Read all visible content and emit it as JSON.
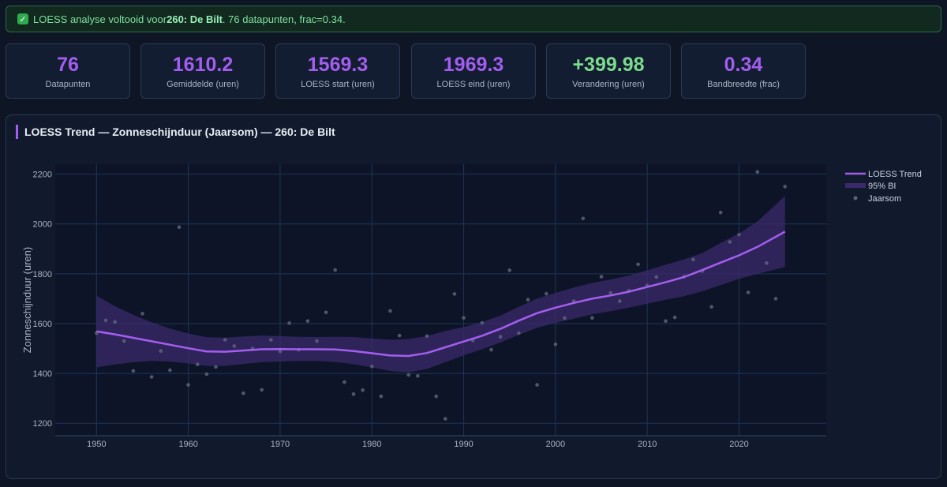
{
  "banner": {
    "icon": "check-icon",
    "prefix": "LOESS analyse voltooid voor ",
    "station": "260: De Bilt",
    "suffix": ". 76 datapunten, frac=0.34."
  },
  "cards": [
    {
      "value": "76",
      "label": "Datapunten",
      "positive": false
    },
    {
      "value": "1610.2",
      "label": "Gemiddelde (uren)",
      "positive": false
    },
    {
      "value": "1569.3",
      "label": "LOESS start (uren)",
      "positive": false
    },
    {
      "value": "1969.3",
      "label": "LOESS eind (uren)",
      "positive": false
    },
    {
      "value": "+399.98",
      "label": "Verandering (uren)",
      "positive": true
    },
    {
      "value": "0.34",
      "label": "Bandbreedte (frac)",
      "positive": false
    }
  ],
  "panel": {
    "title": "LOESS Trend — Zonneschijnduur (Jaarsom) — 260: De Bilt"
  },
  "chart_data": {
    "type": "line",
    "title": "LOESS Trend — Zonneschijnduur (Jaarsom) — 260: De Bilt",
    "xlabel": "",
    "ylabel": "Zonneschijnduur (uren)",
    "xlim": [
      1945.5,
      2029.5
    ],
    "ylim": [
      1150,
      2240
    ],
    "xticks": [
      1950,
      1960,
      1970,
      1980,
      1990,
      2000,
      2010,
      2020
    ],
    "yticks": [
      1200,
      1400,
      1600,
      1800,
      2000,
      2200
    ],
    "grid": true,
    "legend_position": "top-right",
    "colors": {
      "trend": "#a35ef0",
      "band": "#3b2a6b",
      "points": "#5a6478",
      "plot_bg": "#0d1428",
      "grid": "#1f3556"
    },
    "series": [
      {
        "name": "LOESS Trend",
        "kind": "line",
        "x": [
          1950,
          1952,
          1954,
          1956,
          1958,
          1960,
          1962,
          1964,
          1966,
          1968,
          1970,
          1972,
          1974,
          1976,
          1978,
          1980,
          1982,
          1984,
          1986,
          1988,
          1990,
          1992,
          1994,
          1996,
          1998,
          2000,
          2002,
          2004,
          2006,
          2008,
          2010,
          2012,
          2014,
          2016,
          2018,
          2020,
          2022,
          2025
        ],
        "y": [
          1569,
          1557,
          1543,
          1529,
          1515,
          1501,
          1488,
          1487,
          1492,
          1497,
          1498,
          1497,
          1497,
          1496,
          1490,
          1481,
          1472,
          1470,
          1482,
          1505,
          1528,
          1551,
          1579,
          1612,
          1642,
          1664,
          1683,
          1700,
          1713,
          1728,
          1747,
          1766,
          1787,
          1815,
          1845,
          1874,
          1908,
          1969
        ]
      },
      {
        "name": "95% BI",
        "kind": "band",
        "x": [
          1950,
          1952,
          1954,
          1956,
          1958,
          1960,
          1962,
          1964,
          1966,
          1968,
          1970,
          1972,
          1974,
          1976,
          1978,
          1980,
          1982,
          1984,
          1986,
          1988,
          1990,
          1992,
          1994,
          1996,
          1998,
          2000,
          2002,
          2004,
          2006,
          2008,
          2010,
          2012,
          2014,
          2016,
          2018,
          2020,
          2022,
          2025
        ],
        "lower": [
          1425,
          1436,
          1445,
          1450,
          1448,
          1440,
          1430,
          1430,
          1438,
          1445,
          1448,
          1450,
          1450,
          1446,
          1437,
          1424,
          1410,
          1404,
          1418,
          1445,
          1473,
          1497,
          1525,
          1555,
          1583,
          1603,
          1620,
          1637,
          1650,
          1664,
          1680,
          1696,
          1710,
          1730,
          1755,
          1780,
          1800,
          1827
        ],
        "upper": [
          1712,
          1670,
          1635,
          1605,
          1580,
          1560,
          1545,
          1544,
          1548,
          1552,
          1550,
          1547,
          1546,
          1547,
          1546,
          1540,
          1535,
          1538,
          1550,
          1570,
          1586,
          1606,
          1632,
          1667,
          1700,
          1723,
          1745,
          1763,
          1777,
          1793,
          1814,
          1836,
          1858,
          1883,
          1924,
          1962,
          2010,
          2112
        ]
      },
      {
        "name": "Jaarsom",
        "kind": "scatter",
        "x": [
          1950,
          1951,
          1952,
          1953,
          1954,
          1955,
          1956,
          1957,
          1958,
          1959,
          1960,
          1961,
          1962,
          1963,
          1964,
          1965,
          1966,
          1967,
          1968,
          1969,
          1970,
          1971,
          1972,
          1973,
          1974,
          1975,
          1976,
          1977,
          1978,
          1979,
          1980,
          1981,
          1982,
          1983,
          1984,
          1985,
          1986,
          1987,
          1988,
          1989,
          1990,
          1991,
          1992,
          1993,
          1994,
          1995,
          1996,
          1997,
          1998,
          1999,
          2000,
          2001,
          2002,
          2003,
          2004,
          2005,
          2006,
          2007,
          2008,
          2009,
          2010,
          2011,
          2012,
          2013,
          2014,
          2015,
          2016,
          2017,
          2018,
          2019,
          2020,
          2021,
          2022,
          2023,
          2024,
          2025
        ],
        "y": [
          1562,
          1613,
          1607,
          1530,
          1410,
          1640,
          1386,
          1490,
          1413,
          1987,
          1354,
          1436,
          1397,
          1426,
          1535,
          1510,
          1320,
          1500,
          1334,
          1535,
          1488,
          1602,
          1495,
          1610,
          1530,
          1645,
          1815,
          1365,
          1317,
          1333,
          1428,
          1308,
          1651,
          1552,
          1394,
          1390,
          1550,
          1308,
          1218,
          1719,
          1623,
          1532,
          1603,
          1495,
          1547,
          1814,
          1562,
          1696,
          1354,
          1720,
          1517,
          1622,
          1690,
          2022,
          1623,
          1788,
          1723,
          1690,
          1732,
          1838,
          1753,
          1787,
          1610,
          1625,
          1788,
          1857,
          1811,
          1667,
          2046,
          1928,
          1957,
          1725,
          2209,
          1843,
          1700,
          2150
        ]
      }
    ]
  }
}
